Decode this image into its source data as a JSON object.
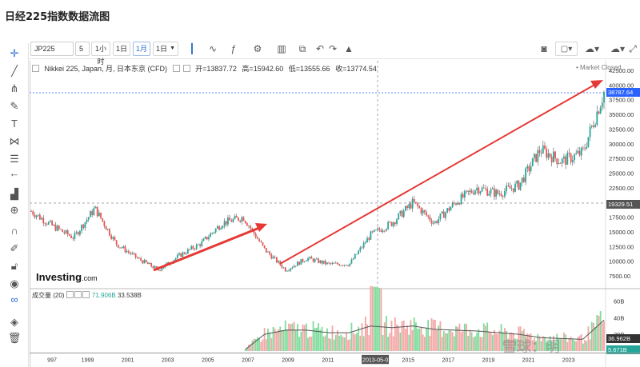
{
  "page_title": "日经225指数数据流图",
  "toolbar": {
    "symbol": "JP225",
    "interval_value": "5",
    "buttons": [
      "1小时",
      "1日",
      "1月",
      "1日"
    ],
    "active_button_index": 2,
    "icons": [
      "candles-icon",
      "line-style-icon",
      "indicators-icon",
      "settings-icon",
      "templates-icon",
      "compare-icon",
      "undo-icon",
      "redo-icon",
      "alert-icon"
    ],
    "right_icons": [
      "camera-icon",
      "layout-icon",
      "cloud-load-icon",
      "cloud-save-icon",
      "fullscreen-icon"
    ]
  },
  "left_tools": [
    "crosshair-icon",
    "trend-line-icon",
    "pitchfork-icon",
    "brush-icon",
    "text-icon",
    "pattern-icon",
    "fib-icon",
    "arrow-left-icon",
    "measure-icon",
    "zoom-icon",
    "magnet-icon",
    "draw-mode-icon",
    "lock-icon",
    "eye-icon",
    "link-icon",
    "layers-icon",
    "trash-icon"
  ],
  "chart_info": {
    "name": "Nikkei 225, Japan, 月, 日本东京 (CFD)",
    "open_label": "开=",
    "open": "13837.72",
    "high_label": "高=",
    "high": "15942.60",
    "low_label": "低=",
    "low": "13555.66",
    "close_label": "收=",
    "close": "13774.54",
    "market_status": "• Market Closed",
    "logo": "Investing",
    "logo_suffix": ".com",
    "volume_label": "成交量 (20)",
    "volume_value_1": "71.906B",
    "volume_value_2": "33.538B",
    "watermark": "雪球：明"
  },
  "price_axis": {
    "ticks": [
      "42500.00",
      "40000.00",
      "37500.00",
      "35000.00",
      "32500.00",
      "30000.00",
      "27500.00",
      "25000.00",
      "22500.00",
      "20000.00",
      "17500.00",
      "15000.00",
      "12500.00",
      "10000.00",
      "7500.00"
    ],
    "current_price": "38787.64",
    "hline_price": "19329.51"
  },
  "volume_axis": {
    "ticks": [
      "60B",
      "40B",
      "20B"
    ],
    "tag_1": "36.962B",
    "tag_2": "5.671B"
  },
  "time_axis": {
    "ticks": [
      "997",
      "1999",
      "2001",
      "2003",
      "2005",
      "2007",
      "2009",
      "2011",
      "2013-05-01",
      "2015",
      "2017",
      "2019",
      "2021",
      "2023"
    ]
  },
  "colors": {
    "up": "#26a69a",
    "down": "#ef5350",
    "arrow": "#e53935",
    "price_tag": "#2962ff",
    "volume_up": "#7ddc9b",
    "volume_down": "#f4a6a6"
  },
  "chart_data": {
    "type": "line",
    "title": "Nikkei 225, Japan, 月, 日本东京 (CFD)",
    "x": [
      1997,
      1998,
      1999,
      2000,
      2001,
      2002,
      2003,
      2004,
      2005,
      2006,
      2007,
      2008,
      2009,
      2010,
      2011,
      2012,
      2013,
      2014,
      2015,
      2016,
      2017,
      2018,
      2019,
      2020,
      2021,
      2022,
      2023,
      2024
    ],
    "series": [
      {
        "values": [
          18500,
          16000,
          14000,
          19000,
          13000,
          10500,
          8500,
          11000,
          13000,
          16500,
          17500,
          12000,
          8500,
          10500,
          9500,
          9500,
          14500,
          16500,
          20000,
          16500,
          20000,
          22500,
          21500,
          23000,
          29000,
          27000,
          28500,
          38787
        ]
      }
    ],
    "volume": [
      0,
      0,
      0,
      0,
      0,
      0,
      0,
      0,
      0,
      0,
      0,
      20,
      25,
      25,
      22,
      22,
      30,
      28,
      30,
      26,
      25,
      24,
      22,
      20,
      16,
      15,
      14,
      37
    ],
    "ylim": [
      7500,
      42500
    ],
    "annotations": [
      "arrow 2003-2007",
      "arrow 2009-2024"
    ]
  }
}
